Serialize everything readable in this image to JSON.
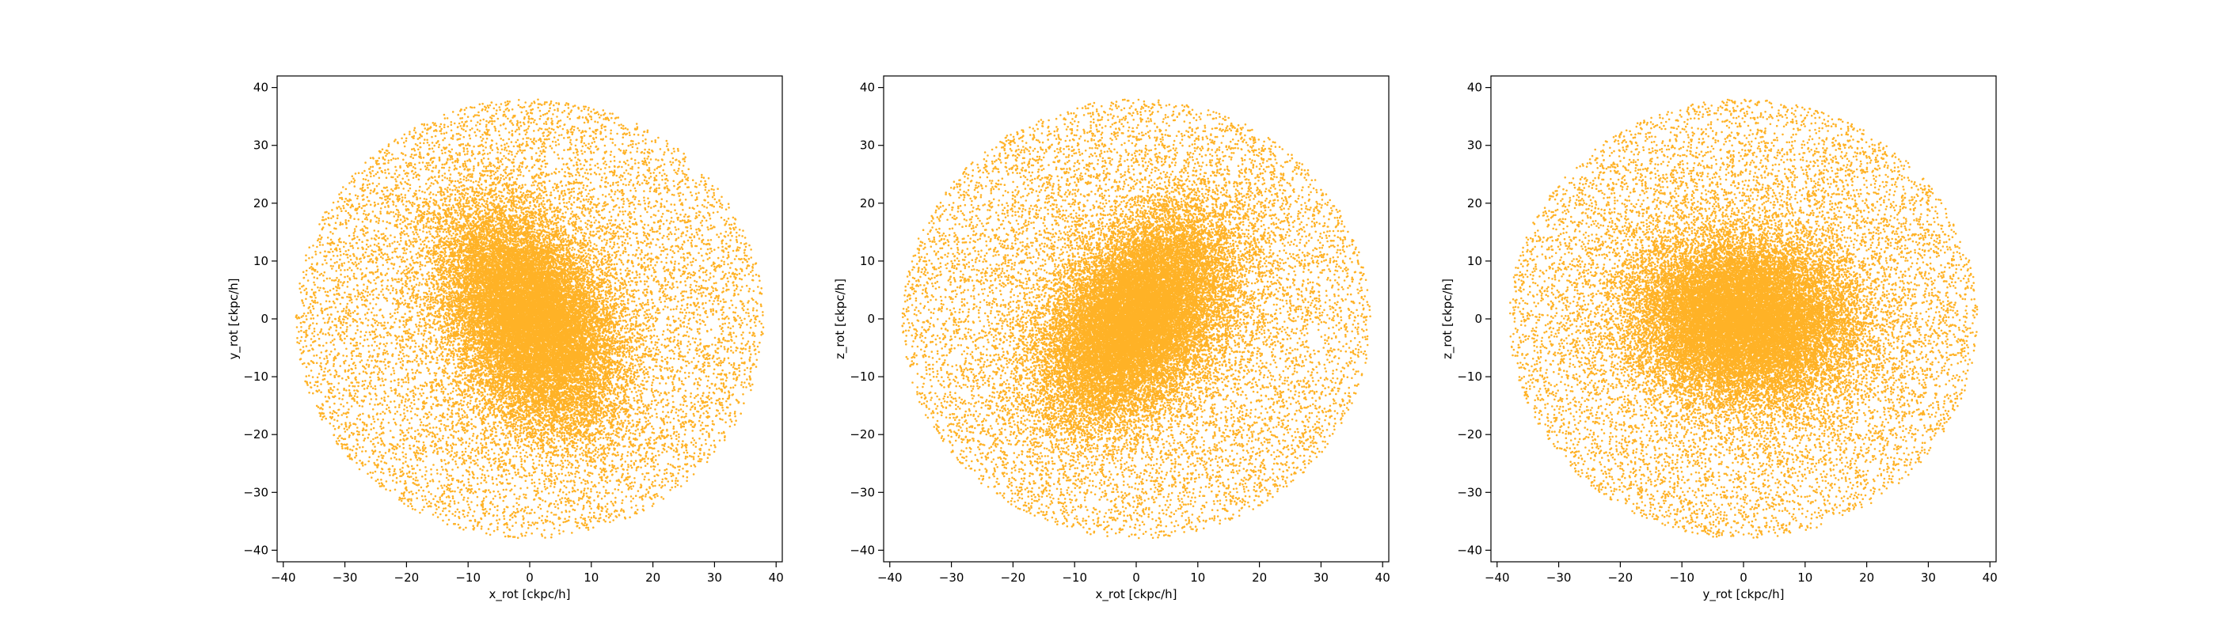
{
  "chart_data": [
    {
      "type": "scatter",
      "xlabel": "x_rot [ckpc/h]",
      "ylabel": "y_rot [ckpc/h]",
      "xlim": [
        -41,
        41
      ],
      "ylim": [
        -42,
        42
      ],
      "xticks": [
        -40,
        -30,
        -20,
        -10,
        0,
        10,
        20,
        30,
        40
      ],
      "yticks": [
        -40,
        -30,
        -20,
        -10,
        0,
        10,
        20,
        30,
        40
      ],
      "grid": false,
      "legend": "none",
      "point_color": "#ffa500",
      "distribution": {
        "shape": "disk with dense elliptical core",
        "outer_radius": 38,
        "core_sigma_major": 10,
        "core_sigma_minor": 6,
        "core_tilt_deg": 115,
        "n_points": 30000
      }
    },
    {
      "type": "scatter",
      "xlabel": "x_rot [ckpc/h]",
      "ylabel": "z_rot [ckpc/h]",
      "xlim": [
        -41,
        41
      ],
      "ylim": [
        -42,
        42
      ],
      "xticks": [
        -40,
        -30,
        -20,
        -10,
        0,
        10,
        20,
        30,
        40
      ],
      "yticks": [
        -40,
        -30,
        -20,
        -10,
        0,
        10,
        20,
        30,
        40
      ],
      "grid": false,
      "legend": "none",
      "point_color": "#ffa500",
      "distribution": {
        "shape": "disk with dense elliptical core",
        "outer_radius": 38,
        "core_sigma_major": 10,
        "core_sigma_minor": 6,
        "core_tilt_deg": 55,
        "n_points": 30000
      }
    },
    {
      "type": "scatter",
      "xlabel": "y_rot [ckpc/h]",
      "ylabel": "z_rot [ckpc/h]",
      "xlim": [
        -41,
        41
      ],
      "ylim": [
        -42,
        42
      ],
      "xticks": [
        -40,
        -30,
        -20,
        -10,
        0,
        10,
        20,
        30,
        40
      ],
      "yticks": [
        -40,
        -30,
        -20,
        -10,
        0,
        10,
        20,
        30,
        40
      ],
      "grid": false,
      "legend": "none",
      "point_color": "#ffa500",
      "distribution": {
        "shape": "disk with dense elliptical core",
        "outer_radius": 38,
        "core_sigma_major": 9,
        "core_sigma_minor": 7,
        "core_tilt_deg": 170,
        "n_points": 30000
      }
    }
  ]
}
